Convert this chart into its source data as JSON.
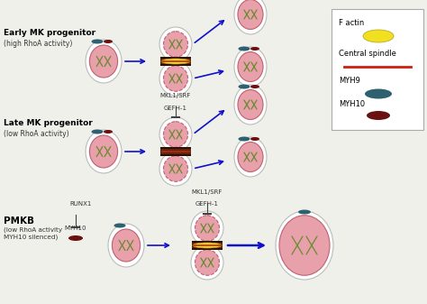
{
  "bg_color": "#f0f0eb",
  "cell_outer_color": "#bbbbbb",
  "nucleus_color": "#e8a0aa",
  "nucleus_dashed_color": "#c06070",
  "chromo_color": "#6a8a30",
  "myh9_color": "#2e6070",
  "myh10_color": "#6a1010",
  "factin_color": "#f0e020",
  "factin_edge": "#b0a010",
  "spindle_color": "#cc2010",
  "cleavage_dark": "#2a1005",
  "cleavage_mid": "#5a2a10",
  "arrow_color": "#1010cc",
  "label_row1": "Early MK progenitor",
  "label_row1_sub": "(high RhoA activity)",
  "label_row2": "Late MK progenitor",
  "label_row2_sub": "(low RhoA activity)",
  "label_row3": "PMKB",
  "label_row3_sub": "(low RhoA activity\nMYH10 silenced)",
  "legend_labels": [
    "F actin",
    "Central spindle",
    "MYH9",
    "MYH10"
  ],
  "inhibit_text1": "MKL1/SRF",
  "inhibit_text1b": "GEFH-1",
  "inhibit_text2": "MKL1/SRF",
  "inhibit_text2b": "GEFH-1",
  "inhibit_text3": "RUNX1",
  "inhibit_text3b": "MYH10"
}
